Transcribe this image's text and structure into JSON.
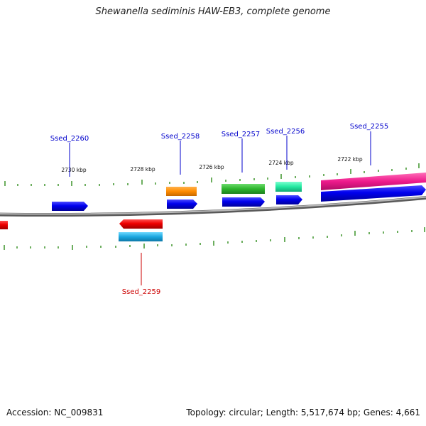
{
  "title": "Shewanella sediminis HAW-EB3, complete genome",
  "footer": {
    "accession": "Accession: NC_009831",
    "summary": "Topology: circular; Length: 5,517,674 bp; Genes: 4,661"
  },
  "ticks": [
    "2730 kbp",
    "2728 kbp",
    "2726 kbp",
    "2724 kbp",
    "2722 kbp"
  ],
  "genes": [
    {
      "label": "Ssed_2260",
      "color": "#0000cc"
    },
    {
      "label": "Ssed_2258",
      "color": "#0000cc"
    },
    {
      "label": "Ssed_2257",
      "color": "#0000cc"
    },
    {
      "label": "Ssed_2256",
      "color": "#0000cc"
    },
    {
      "label": "Ssed_2255",
      "color": "#0000cc"
    },
    {
      "label": "Ssed_2259",
      "color": "#cc0000"
    }
  ],
  "colors": {
    "forward_cds": "#0000ee",
    "reverse_cds": "#ee0000",
    "backbone": "#888888",
    "tick_marks": "#2e8b1a",
    "orange_feature": "#ff8c00",
    "green_feature": "#2db52d",
    "teal_feature": "#22e8a0",
    "pink_feature": "#ee1a8c",
    "cyan_feature": "#1aa7e0"
  }
}
